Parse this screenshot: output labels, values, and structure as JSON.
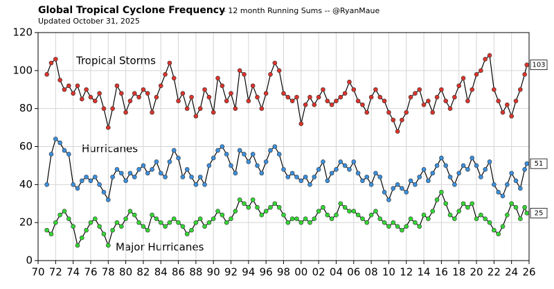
{
  "chart_data": {
    "type": "line",
    "title": "Global Tropical Cyclone Frequency",
    "subtitle": "-- 12 month Running Sums -- @RyanMaue",
    "note": "Updated October 31, 2025",
    "x": [
      1971.0,
      1971.5,
      1972.0,
      1972.5,
      1973.0,
      1973.5,
      1974.0,
      1974.5,
      1975.0,
      1975.5,
      1976.0,
      1976.5,
      1977.0,
      1977.5,
      1978.0,
      1978.5,
      1979.0,
      1979.5,
      1980.0,
      1980.5,
      1981.0,
      1981.5,
      1982.0,
      1982.5,
      1983.0,
      1983.5,
      1984.0,
      1984.5,
      1985.0,
      1985.5,
      1986.0,
      1986.5,
      1987.0,
      1987.5,
      1988.0,
      1988.5,
      1989.0,
      1989.5,
      1990.0,
      1990.5,
      1991.0,
      1991.5,
      1992.0,
      1992.5,
      1993.0,
      1993.5,
      1994.0,
      1994.5,
      1995.0,
      1995.5,
      1996.0,
      1996.5,
      1997.0,
      1997.5,
      1998.0,
      1998.5,
      1999.0,
      1999.5,
      2000.0,
      2000.5,
      2001.0,
      2001.5,
      2002.0,
      2002.5,
      2003.0,
      2003.5,
      2004.0,
      2004.5,
      2005.0,
      2005.5,
      2006.0,
      2006.5,
      2007.0,
      2007.5,
      2008.0,
      2008.5,
      2009.0,
      2009.5,
      2010.0,
      2010.5,
      2011.0,
      2011.5,
      2012.0,
      2012.5,
      2013.0,
      2013.5,
      2014.0,
      2014.5,
      2015.0,
      2015.5,
      2016.0,
      2016.5,
      2017.0,
      2017.5,
      2018.0,
      2018.5,
      2019.0,
      2019.5,
      2020.0,
      2020.5,
      2021.0,
      2021.5,
      2022.0,
      2022.5,
      2023.0,
      2023.5,
      2024.0,
      2024.5,
      2025.0,
      2025.5,
      2025.75
    ],
    "series": [
      {
        "name": "Tropical Storms",
        "color": "#d9342b",
        "end_label": "103",
        "values": [
          98,
          104,
          106,
          95,
          90,
          92,
          88,
          92,
          85,
          90,
          86,
          84,
          88,
          80,
          70,
          80,
          92,
          88,
          78,
          84,
          88,
          86,
          90,
          88,
          78,
          86,
          92,
          98,
          104,
          96,
          84,
          88,
          80,
          86,
          76,
          80,
          90,
          86,
          78,
          96,
          92,
          84,
          88,
          80,
          100,
          98,
          84,
          92,
          86,
          80,
          88,
          98,
          104,
          100,
          88,
          86,
          84,
          86,
          72,
          82,
          86,
          82,
          86,
          90,
          84,
          82,
          84,
          86,
          88,
          94,
          90,
          84,
          82,
          78,
          86,
          90,
          86,
          84,
          78,
          74,
          68,
          74,
          78,
          86,
          88,
          90,
          82,
          84,
          78,
          86,
          90,
          84,
          80,
          86,
          92,
          96,
          84,
          90,
          98,
          100,
          106,
          108,
          90,
          84,
          78,
          82,
          76,
          84,
          90,
          98,
          103
        ]
      },
      {
        "name": "Hurricanes",
        "color": "#3b8fdc",
        "end_label": "51",
        "values": [
          40,
          56,
          64,
          62,
          58,
          56,
          40,
          38,
          42,
          44,
          42,
          44,
          40,
          36,
          32,
          44,
          48,
          46,
          42,
          46,
          44,
          48,
          50,
          46,
          48,
          52,
          46,
          44,
          52,
          58,
          54,
          44,
          48,
          44,
          40,
          44,
          40,
          50,
          54,
          58,
          60,
          56,
          50,
          46,
          58,
          56,
          52,
          56,
          50,
          46,
          52,
          58,
          60,
          56,
          48,
          44,
          46,
          44,
          42,
          44,
          40,
          44,
          48,
          52,
          42,
          46,
          48,
          52,
          50,
          48,
          52,
          46,
          42,
          44,
          40,
          46,
          44,
          36,
          32,
          38,
          40,
          38,
          36,
          42,
          40,
          44,
          48,
          42,
          46,
          50,
          54,
          50,
          44,
          40,
          46,
          50,
          48,
          54,
          50,
          44,
          48,
          52,
          40,
          36,
          34,
          40,
          46,
          42,
          38,
          48,
          51
        ]
      },
      {
        "name": "Major Hurricanes",
        "color": "#33d633",
        "end_label": "25",
        "values": [
          16,
          14,
          20,
          24,
          26,
          22,
          18,
          8,
          12,
          16,
          20,
          22,
          18,
          14,
          8,
          16,
          20,
          18,
          22,
          26,
          24,
          20,
          18,
          16,
          24,
          22,
          20,
          18,
          20,
          22,
          20,
          18,
          14,
          16,
          20,
          22,
          18,
          20,
          22,
          26,
          24,
          20,
          22,
          26,
          32,
          30,
          28,
          32,
          28,
          24,
          26,
          28,
          30,
          28,
          24,
          20,
          22,
          22,
          20,
          22,
          20,
          22,
          26,
          28,
          24,
          22,
          24,
          30,
          28,
          26,
          26,
          24,
          22,
          20,
          24,
          26,
          22,
          20,
          18,
          20,
          18,
          16,
          18,
          22,
          20,
          18,
          24,
          22,
          26,
          32,
          36,
          30,
          24,
          22,
          26,
          30,
          28,
          30,
          22,
          24,
          22,
          20,
          16,
          14,
          18,
          24,
          30,
          28,
          22,
          28,
          25
        ]
      }
    ],
    "xlim": [
      1970,
      2026
    ],
    "xticks": [
      {
        "value": 1970,
        "label": "70"
      },
      {
        "value": 1972,
        "label": "72"
      },
      {
        "value": 1974,
        "label": "74"
      },
      {
        "value": 1976,
        "label": "76"
      },
      {
        "value": 1978,
        "label": "78"
      },
      {
        "value": 1980,
        "label": "80"
      },
      {
        "value": 1982,
        "label": "82"
      },
      {
        "value": 1984,
        "label": "84"
      },
      {
        "value": 1986,
        "label": "86"
      },
      {
        "value": 1988,
        "label": "88"
      },
      {
        "value": 1990,
        "label": "90"
      },
      {
        "value": 1992,
        "label": "92"
      },
      {
        "value": 1994,
        "label": "94"
      },
      {
        "value": 1996,
        "label": "96"
      },
      {
        "value": 1998,
        "label": "98"
      },
      {
        "value": 2000,
        "label": "00"
      },
      {
        "value": 2002,
        "label": "02"
      },
      {
        "value": 2004,
        "label": "04"
      },
      {
        "value": 2006,
        "label": "06"
      },
      {
        "value": 2008,
        "label": "08"
      },
      {
        "value": 2010,
        "label": "10"
      },
      {
        "value": 2012,
        "label": "12"
      },
      {
        "value": 2014,
        "label": "14"
      },
      {
        "value": 2016,
        "label": "16"
      },
      {
        "value": 2018,
        "label": "18"
      },
      {
        "value": 2020,
        "label": "20"
      },
      {
        "value": 2022,
        "label": "22"
      },
      {
        "value": 2024,
        "label": "24"
      },
      {
        "value": 2026,
        "label": "26"
      }
    ],
    "ylim": [
      0,
      120
    ],
    "yticks": [
      0,
      20,
      40,
      60,
      80,
      100,
      120
    ],
    "grid": true
  }
}
